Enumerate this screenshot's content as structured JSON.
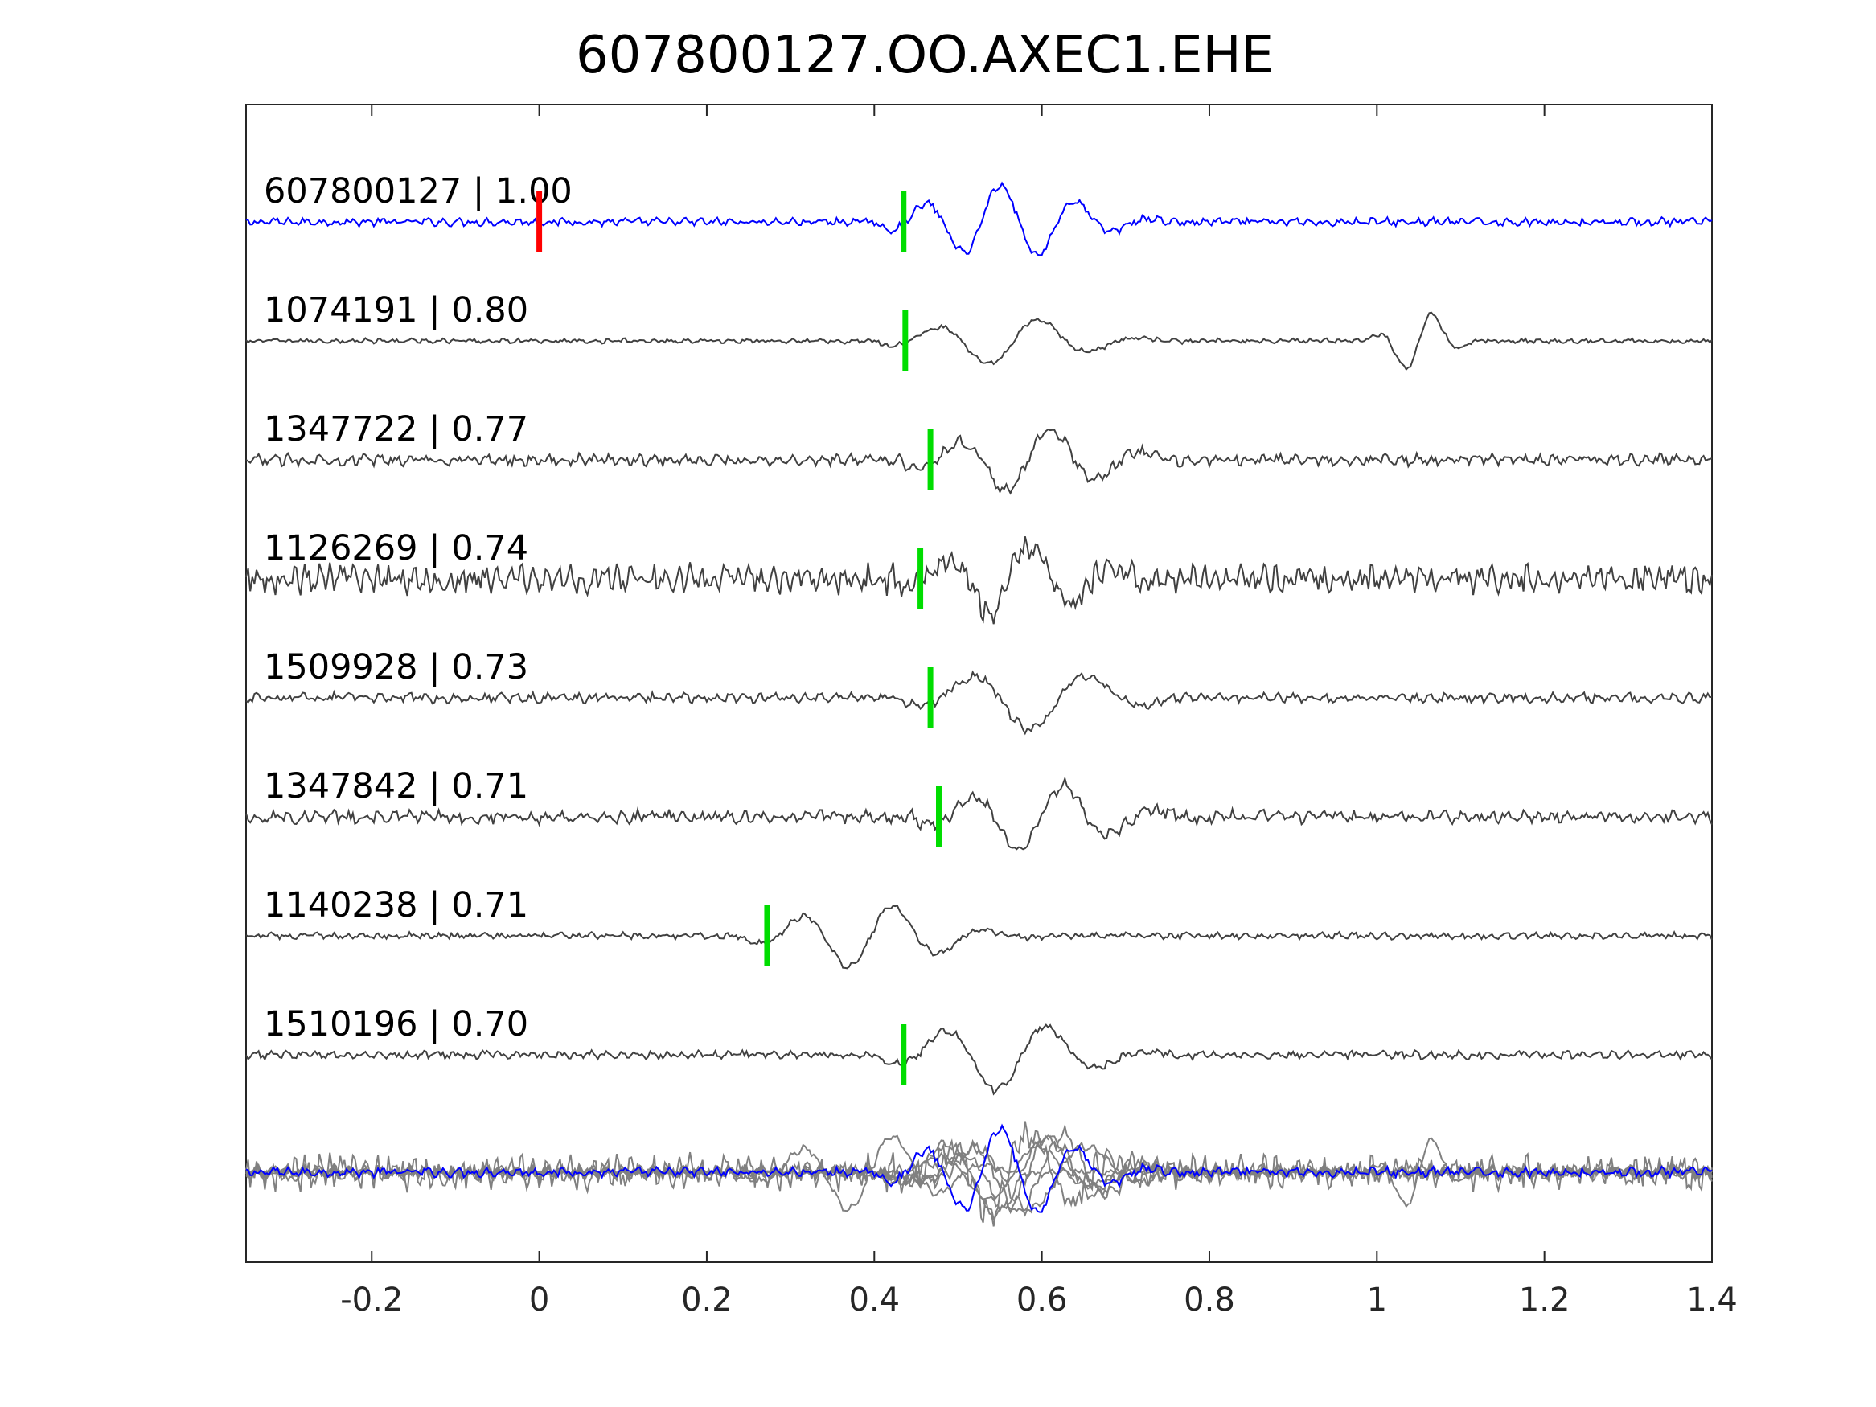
{
  "chart_data": {
    "type": "line",
    "title": "607800127.OO.AXEC1.EHE",
    "xlim": [
      -0.35,
      1.4
    ],
    "x_ticks": [
      -0.2,
      0,
      0.2,
      0.4,
      0.6,
      0.8,
      1,
      1.2,
      1.4
    ],
    "x_tick_labels": [
      "-0.2",
      "0",
      "0.2",
      "0.4",
      "0.6",
      "0.8",
      "1",
      "1.2",
      "1.4"
    ],
    "grid": false,
    "legend": "none",
    "colors": {
      "template": "#0000ff",
      "match": "#404040",
      "overlay": "#808080",
      "origin_pick": "#ff0000",
      "phase_pick": "#00dd00",
      "axes": "#262626"
    },
    "traces": [
      {
        "id": "607800127",
        "cc": "1.00",
        "label": "607800127 | 1.00",
        "pick_time": 0.435,
        "color_role": "template"
      },
      {
        "id": "1074191",
        "cc": "0.80",
        "label": "1074191 | 0.80",
        "pick_time": 0.437,
        "color_role": "match"
      },
      {
        "id": "1347722",
        "cc": "0.77",
        "label": "1347722 | 0.77",
        "pick_time": 0.467,
        "color_role": "match"
      },
      {
        "id": "1126269",
        "cc": "0.74",
        "label": "1126269 | 0.74",
        "pick_time": 0.455,
        "color_role": "match"
      },
      {
        "id": "1509928",
        "cc": "0.73",
        "label": "1509928 | 0.73",
        "pick_time": 0.467,
        "color_role": "match"
      },
      {
        "id": "1347842",
        "cc": "0.71",
        "label": "1347842 | 0.71",
        "pick_time": 0.477,
        "color_role": "match"
      },
      {
        "id": "1140238",
        "cc": "0.71",
        "label": "1140238 | 0.71",
        "pick_time": 0.272,
        "color_role": "match"
      },
      {
        "id": "1510196",
        "cc": "0.70",
        "label": "1510196 | 0.70",
        "pick_time": 0.435,
        "color_role": "match"
      }
    ],
    "origin_marker_time": 0.0,
    "overlay_stack": true
  }
}
